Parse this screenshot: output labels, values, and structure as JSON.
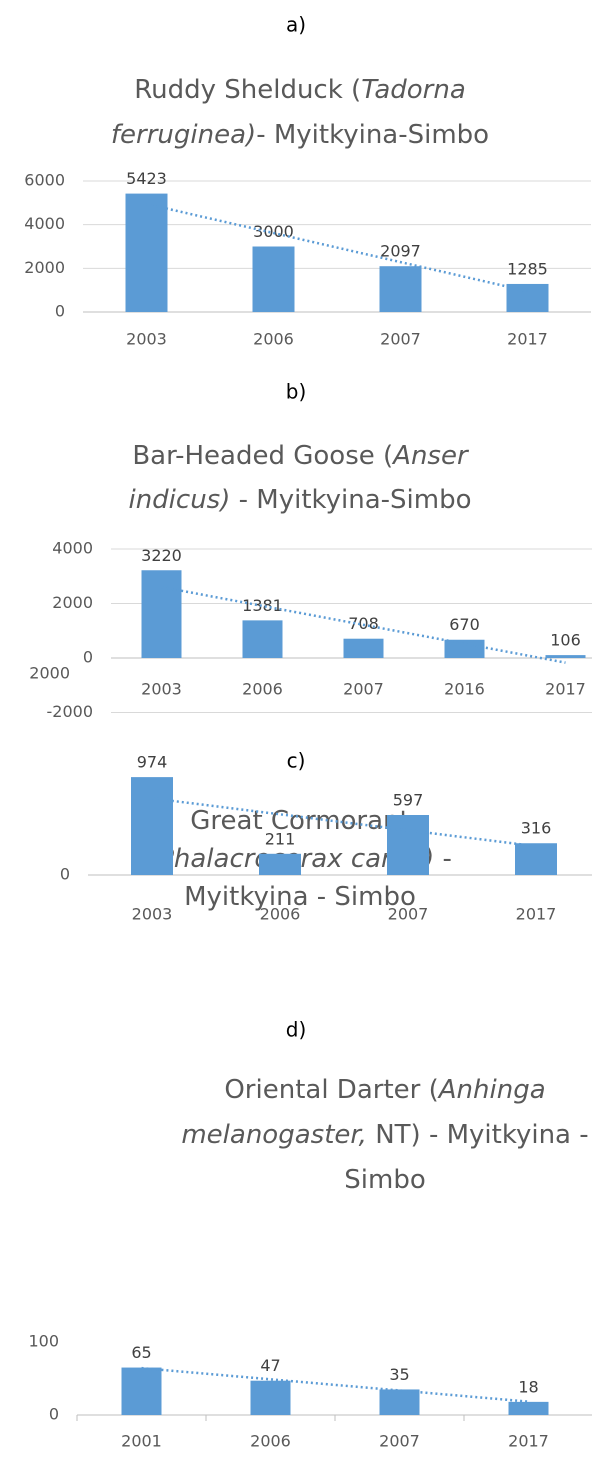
{
  "chart_data": [
    {
      "type": "bar",
      "panel_label": "a)",
      "title_lines": [
        [
          {
            "text": "Ruddy Shelduck (",
            "italic": false
          },
          {
            "text": "Tadorna",
            "italic": true
          }
        ],
        [
          {
            "text": "ferruginea)",
            "italic": true
          },
          {
            "text": "- Myitkyina-Simbo",
            "italic": false
          }
        ]
      ],
      "categories": [
        "2003",
        "2006",
        "2007",
        "2017"
      ],
      "values": [
        5423,
        3000,
        2097,
        1285
      ],
      "ylim": [
        0,
        6000
      ],
      "yticks": [
        0,
        2000,
        4000,
        6000
      ],
      "grid": true,
      "color": "#5b9bd5",
      "trendline": "linear"
    },
    {
      "type": "bar",
      "panel_label": "b)",
      "title_lines": [
        [
          {
            "text": "Bar-Headed Goose (",
            "italic": false
          },
          {
            "text": "Anser",
            "italic": true
          }
        ],
        [
          {
            "text": "indicus)",
            "italic": true
          },
          {
            "text": "  - Myitkyina-Simbo",
            "italic": false
          }
        ]
      ],
      "categories": [
        "2003",
        "2006",
        "2007",
        "2016",
        "2017"
      ],
      "values": [
        3220,
        1381,
        708,
        670,
        106
      ],
      "ylim": [
        -2000,
        4000
      ],
      "yticks": [
        -2000,
        0,
        2000,
        4000
      ],
      "grid": true,
      "color": "#5b9bd5",
      "trendline": "linear"
    },
    {
      "type": "bar",
      "panel_label": "c)",
      "title_lines": [
        [
          {
            "text": "Great Cormorant",
            "italic": false
          }
        ],
        [
          {
            "text": "(",
            "italic": false
          },
          {
            "text": "Phalacrocorax carbo)",
            "italic": true
          },
          {
            "text": " -",
            "italic": false
          }
        ],
        [
          {
            "text": "Myitkyina - Simbo",
            "italic": false
          }
        ]
      ],
      "categories": [
        "2003",
        "2006",
        "2007",
        "2017"
      ],
      "values": [
        974,
        211,
        597,
        316
      ],
      "ylim": [
        0,
        2000
      ],
      "yticks": [
        0,
        2000
      ],
      "grid": false,
      "color": "#5b9bd5",
      "trendline": "linear"
    },
    {
      "type": "bar",
      "panel_label": "d)",
      "title_lines": [
        [
          {
            "text": "Oriental Darter (",
            "italic": false
          },
          {
            "text": "Anhinga",
            "italic": true
          }
        ],
        [
          {
            "text": "melanogaster,",
            "italic": true
          },
          {
            "text": " NT) - Myitkyina -",
            "italic": false
          }
        ],
        [
          {
            "text": "Simbo",
            "italic": false
          }
        ]
      ],
      "categories": [
        "2001",
        "2006",
        "2007",
        "2017"
      ],
      "values": [
        65,
        47,
        35,
        18
      ],
      "ylim": [
        0,
        100
      ],
      "yticks": [
        0,
        100
      ],
      "grid": false,
      "color": "#5b9bd5",
      "trendline": "linear"
    }
  ]
}
